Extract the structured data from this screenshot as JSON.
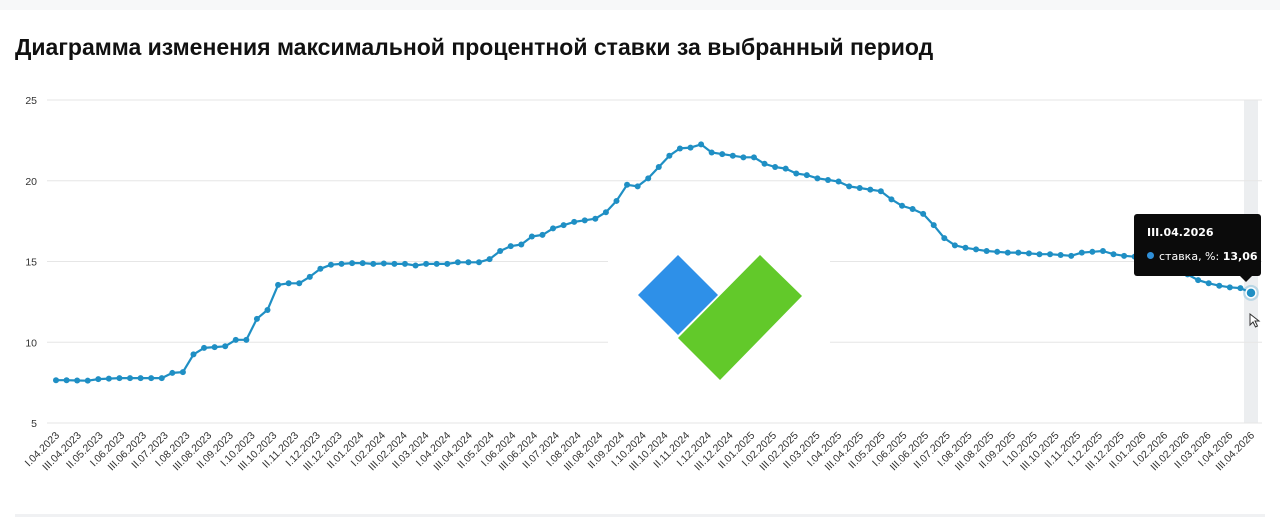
{
  "page": {
    "title": "Диаграмма изменения максимальной процентной ставки за выбранный период"
  },
  "colors": {
    "line": "#1f8fc4",
    "logo_blue": "#2e90e8",
    "logo_green": "#62c92a",
    "tooltip_bg": "#0b0b0b"
  },
  "tooltip": {
    "date": "III.04.2026",
    "series_label": "ставка, %:",
    "value": "13,06"
  },
  "chart_data": {
    "type": "line",
    "title": "Диаграмма изменения максимальной процентной ставки за выбранный период",
    "xlabel": "",
    "ylabel": "",
    "ylim": [
      5,
      25
    ],
    "yticks": [
      5,
      10,
      15,
      20,
      25
    ],
    "grid": true,
    "legend": "none",
    "x_tick_labels": [
      "I.04.2023",
      "III.04.2023",
      "II.05.2023",
      "I.06.2023",
      "III.06.2023",
      "II.07.2023",
      "I.08.2023",
      "III.08.2023",
      "II.09.2023",
      "I.10.2023",
      "III.10.2023",
      "II.11.2023",
      "I.12.2023",
      "III.12.2023",
      "II.01.2024",
      "I.02.2024",
      "III.02.2024",
      "II.03.2024",
      "I.04.2024",
      "III.04.2024",
      "II.05.2024",
      "I.06.2024",
      "III.06.2024",
      "II.07.2024",
      "I.08.2024",
      "III.08.2024",
      "II.09.2024",
      "I.10.2024",
      "III.10.2024",
      "II.11.2024",
      "I.12.2024",
      "III.12.2024",
      "II.01.2025",
      "I.02.2025",
      "III.02.2025",
      "II.03.2025",
      "I.04.2025",
      "III.04.2025",
      "II.05.2025",
      "I.06.2025",
      "III.06.2025",
      "II.07.2025",
      "I.08.2025",
      "III.08.2025",
      "II.09.2025",
      "I.10.2025",
      "III.10.2025",
      "II.11.2025",
      "I.12.2025",
      "III.12.2025",
      "II.01.2026",
      "I.02.2026",
      "III.02.2026",
      "II.03.2026",
      "I.04.2026",
      "III.04.2026"
    ],
    "series": [
      {
        "values": [
          7.65,
          7.65,
          7.63,
          7.62,
          7.72,
          7.75,
          7.78,
          7.78,
          7.78,
          7.78,
          7.78,
          8.1,
          8.15,
          9.25,
          9.65,
          9.7,
          9.75,
          10.15,
          10.15,
          11.45,
          12.0,
          13.55,
          13.65,
          13.65,
          14.05,
          14.55,
          14.8,
          14.85,
          14.9,
          14.9,
          14.85,
          14.88,
          14.85,
          14.85,
          14.75,
          14.85,
          14.85,
          14.85,
          14.95,
          14.95,
          14.95,
          15.15,
          15.65,
          15.95,
          16.05,
          16.55,
          16.65,
          17.05,
          17.25,
          17.45,
          17.55,
          17.65,
          18.05,
          18.75,
          19.75,
          19.65,
          20.15,
          20.85,
          21.55,
          22.0,
          22.05,
          22.25,
          21.75,
          21.65,
          21.55,
          21.45,
          21.45,
          21.05,
          20.85,
          20.75,
          20.45,
          20.35,
          20.15,
          20.05,
          19.95,
          19.65,
          19.55,
          19.45,
          19.35,
          18.85,
          18.45,
          18.25,
          17.95,
          17.25,
          16.45,
          16.0,
          15.85,
          15.75,
          15.65,
          15.6,
          15.55,
          15.55,
          15.5,
          15.45,
          15.45,
          15.4,
          15.35,
          15.55,
          15.6,
          15.65,
          15.45,
          15.35,
          15.3,
          15.15,
          14.95,
          14.75,
          14.5,
          14.2,
          13.85,
          13.65,
          13.5,
          13.4,
          13.35,
          13.06
        ]
      }
    ]
  }
}
